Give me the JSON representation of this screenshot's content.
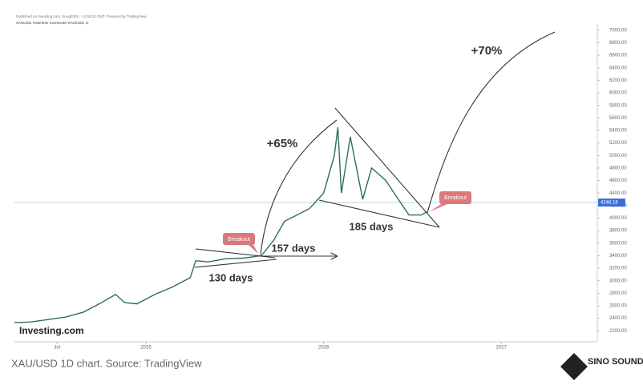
{
  "header": {
    "published": "Published on Investing.com, 5Aug2026 - 14:36:22 GMT, Powered by TradingView",
    "symbol": "XAUUSD, Real-time Currencies XAU/USD, D"
  },
  "chart_data": {
    "type": "line",
    "color": "#2f6f4f",
    "x": [
      2024.26,
      2024.35,
      2024.45,
      2024.55,
      2024.65,
      2024.75,
      2024.83,
      2024.88,
      2024.95,
      2025.05,
      2025.15,
      2025.25,
      2025.28,
      2025.35,
      2025.45,
      2025.55,
      2025.65,
      2025.72,
      2025.78,
      2025.85,
      2025.92,
      2026.0,
      2026.06,
      2026.08,
      2026.1,
      2026.15,
      2026.22,
      2026.27,
      2026.35,
      2026.42,
      2026.48,
      2026.55,
      2026.58
    ],
    "values": [
      2330,
      2340,
      2380,
      2420,
      2500,
      2650,
      2780,
      2650,
      2630,
      2780,
      2900,
      3050,
      3320,
      3300,
      3350,
      3360,
      3400,
      3650,
      3950,
      4050,
      4150,
      4400,
      5000,
      5450,
      4400,
      5300,
      4300,
      4800,
      4600,
      4300,
      4050,
      4050,
      4100
    ],
    "xlim": [
      2024.26,
      2027.54
    ],
    "xticks": [
      {
        "value": 2024.5,
        "label": "Jul"
      },
      2025,
      2026,
      2027
    ],
    "ylim": [
      2050,
      7100
    ],
    "yticks": [
      {
        "value": 2200,
        "label": "2200.00"
      },
      {
        "value": 2400,
        "label": "2400.00"
      },
      {
        "value": 2600,
        "label": "2600.00"
      },
      {
        "value": 2800,
        "label": "2800.00"
      },
      {
        "value": 3000,
        "label": "3000.00"
      },
      {
        "value": 3200,
        "label": "3200.00"
      },
      {
        "value": 3400,
        "label": "3400.00"
      },
      {
        "value": 3600,
        "label": "3600.00"
      },
      {
        "value": 3800,
        "label": "3800.00"
      },
      {
        "value": 4000,
        "label": "4000.00"
      },
      {
        "value": 4200,
        "label": "4200.00"
      },
      {
        "value": 4400,
        "label": "4400.00"
      },
      {
        "value": 4600,
        "label": "4600.00"
      },
      {
        "value": 4800,
        "label": "4800.00"
      },
      {
        "value": 5000,
        "label": "5000.00"
      },
      {
        "value": 5200,
        "label": "5200.00"
      },
      {
        "value": 5400,
        "label": "5400.00"
      },
      {
        "value": 5600,
        "label": "5600.00"
      },
      {
        "value": 5800,
        "label": "5800.00"
      },
      {
        "value": 6000,
        "label": "6000.00"
      },
      {
        "value": 6200,
        "label": "6200.00"
      },
      {
        "value": 6400,
        "label": "6400.00"
      },
      {
        "value": 6600,
        "label": "6600.00"
      },
      {
        "value": 6800,
        "label": "6800.00"
      },
      {
        "value": 7000,
        "label": "7000.00"
      }
    ],
    "last_price": 4248.16,
    "annotations": {
      "gain1": "+65%",
      "gain2": "+70%",
      "days1": "130 days",
      "days2": "157 days",
      "days3": "185 days",
      "breakout1": "Breakout",
      "breakout2": "Breakout"
    }
  },
  "logo": "Investing.com",
  "caption": "XAU/USD 1D chart. Source: TradingView",
  "brand": "SINO SOUND"
}
